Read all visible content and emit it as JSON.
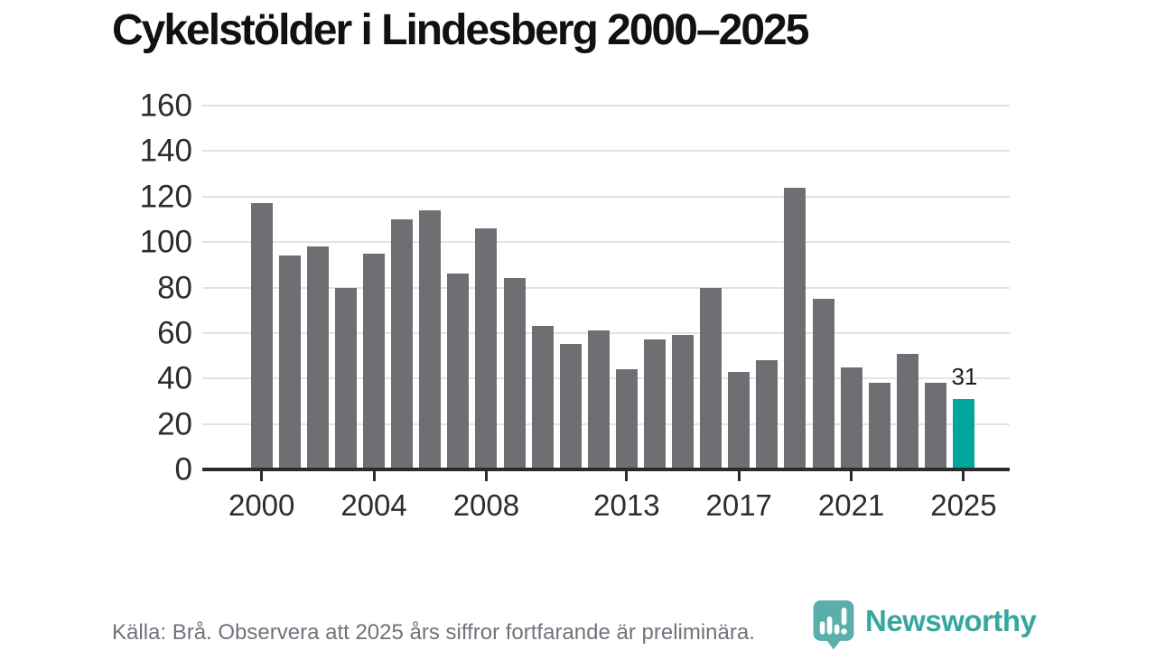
{
  "title": "Cykelstölder i Lindesberg 2000–2025",
  "footer": {
    "source_note": "Källa: Brå. Observera att 2025 års siffror fortfarande är preliminära.",
    "logo_text": "Newsworthy"
  },
  "colors": {
    "bar": "#6e6e73",
    "highlight": "#00a69b",
    "grid": "#e3e3e3",
    "axis": "#2b2b2b",
    "logo_teal": "#3fa29b",
    "logo_text_teal": "#35a79f"
  },
  "chart_data": {
    "type": "bar",
    "title": "Cykelstölder i Lindesberg 2000–2025",
    "x": [
      2000,
      2001,
      2002,
      2003,
      2004,
      2005,
      2006,
      2007,
      2008,
      2009,
      2010,
      2011,
      2012,
      2013,
      2014,
      2015,
      2016,
      2017,
      2018,
      2019,
      2020,
      2021,
      2022,
      2023,
      2024,
      2025
    ],
    "values": [
      117,
      94,
      98,
      80,
      95,
      110,
      114,
      86,
      106,
      84,
      63,
      55,
      61,
      44,
      57,
      59,
      80,
      43,
      48,
      124,
      75,
      45,
      38,
      51,
      38,
      31
    ],
    "bar_color": "#6e6e73",
    "highlight_index": 25,
    "highlight_color": "#00a69b",
    "annotation": {
      "index": 25,
      "text": "31"
    },
    "x_tick_labels": [
      "2000",
      "2004",
      "2008",
      "2013",
      "2017",
      "2021",
      "2025"
    ],
    "y_ticks": [
      0,
      20,
      40,
      60,
      80,
      100,
      120,
      140,
      160
    ],
    "ylim": [
      0,
      160
    ],
    "xlabel": "",
    "ylabel": "",
    "grid": "horizontal",
    "legend": "none"
  }
}
